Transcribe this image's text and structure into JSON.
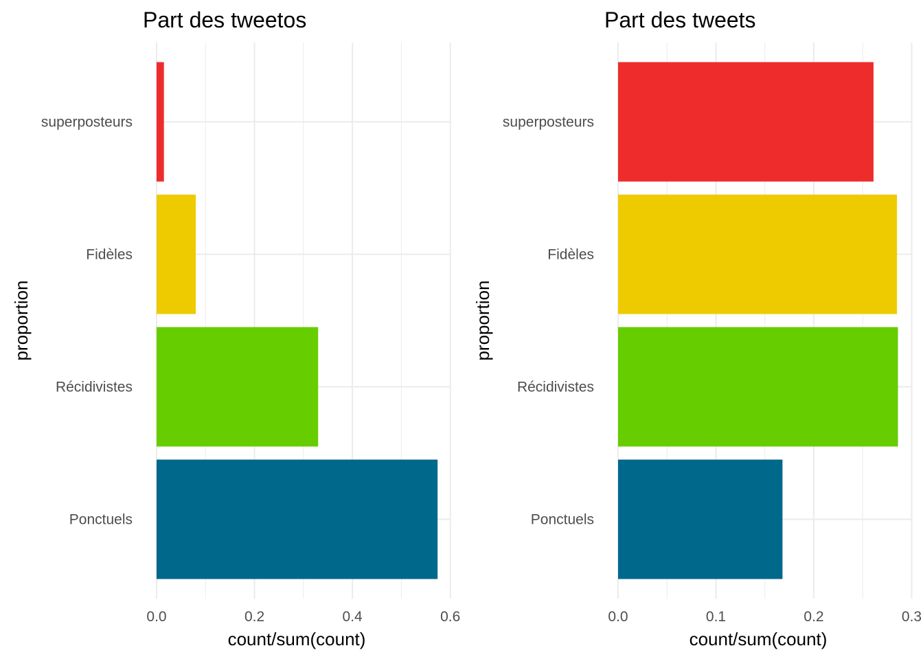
{
  "chart_data": [
    {
      "type": "bar",
      "orientation": "horizontal",
      "title": "Part des tweetos",
      "xlabel": "count/sum(count)",
      "ylabel": "proportion",
      "categories": [
        "superposteurs",
        "Fidèles",
        "Récidivistes",
        "Ponctuels"
      ],
      "values": [
        0.015,
        0.08,
        0.33,
        0.574
      ],
      "colors": [
        "#ee2c2c",
        "#eecb00",
        "#66cd00",
        "#00688b"
      ],
      "xlim": [
        0,
        0.6
      ],
      "xticks": [
        "0.0",
        "0.2",
        "0.4",
        "0.6"
      ],
      "xtick_values": [
        0,
        0.2,
        0.4,
        0.6
      ],
      "grid": true
    },
    {
      "type": "bar",
      "orientation": "horizontal",
      "title": "Part des tweets",
      "xlabel": "count/sum(count)",
      "ylabel": "proportion",
      "categories": [
        "superposteurs",
        "Fidèles",
        "Récidivistes",
        "Ponctuels"
      ],
      "values": [
        0.261,
        0.285,
        0.286,
        0.168
      ],
      "colors": [
        "#ee2c2c",
        "#eecb00",
        "#66cd00",
        "#00688b"
      ],
      "xlim": [
        0,
        0.3
      ],
      "xticks": [
        "0.0",
        "0.1",
        "0.2",
        "0.3"
      ],
      "xtick_values": [
        0,
        0.1,
        0.2,
        0.3
      ],
      "grid": true
    }
  ]
}
